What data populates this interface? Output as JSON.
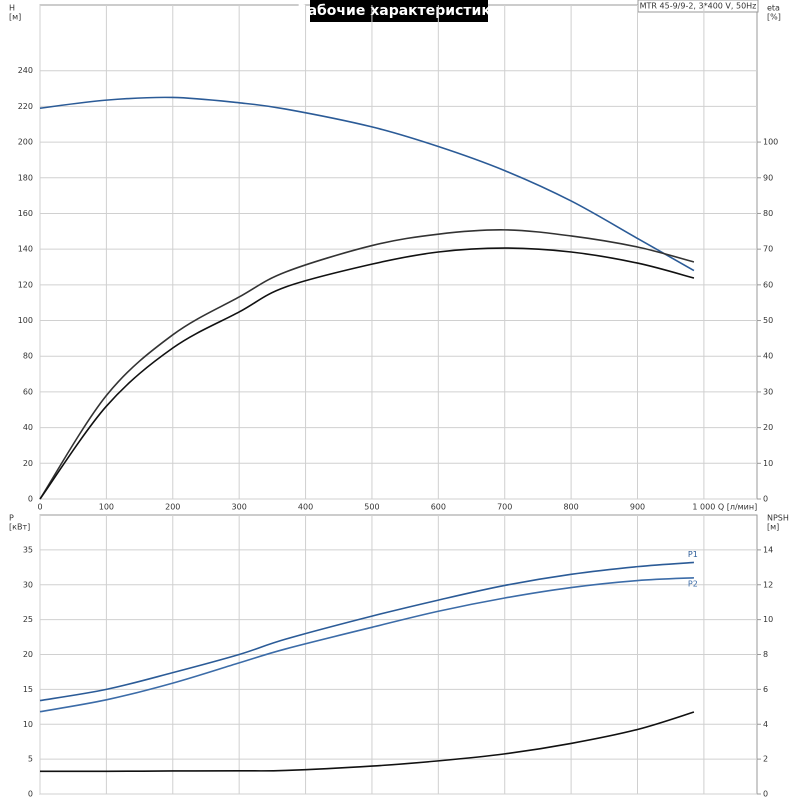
{
  "chart_data": [
    {
      "type": "line",
      "title": "Рабочие характеристики",
      "subtitle": "MTR 45-9/9-2, 3*400 V, 50Hz",
      "y_label": "H",
      "y_unit": "[м]",
      "y2_label": "eta",
      "y2_unit": "[%]",
      "x_label": "Q [л/мин]",
      "xlim": [
        0,
        1080
      ],
      "xticks": [
        0,
        100,
        200,
        300,
        400,
        500,
        600,
        700,
        800,
        900,
        {
          "value": 1000,
          "label": "1 000"
        }
      ],
      "ylim": [
        0,
        260
      ],
      "yticks": [
        0,
        20,
        40,
        60,
        80,
        100,
        120,
        140,
        160,
        180,
        200,
        220,
        240
      ],
      "y2lim": [
        0,
        130
      ],
      "y2ticks": [
        0,
        10,
        20,
        30,
        40,
        50,
        60,
        70,
        80,
        90,
        100
      ],
      "grid": true,
      "x": [
        0,
        100,
        200,
        300,
        370,
        500,
        600,
        700,
        800,
        900,
        985
      ],
      "series": [
        {
          "color": "#2b5b97",
          "values": [
            219,
            223.5,
            225,
            222,
            218.5,
            208.5,
            197.5,
            184,
            167,
            146,
            128
          ]
        },
        {
          "color": "#333333",
          "axis": "y2",
          "values": [
            0,
            29,
            46,
            56.6,
            63.6,
            71,
            74.2,
            75.4,
            73.7,
            70.6,
            66.4
          ]
        },
        {
          "color": "#111111",
          "axis": "y2",
          "values": [
            0,
            26,
            42.3,
            52.4,
            59.4,
            65.8,
            69.2,
            70.3,
            69.2,
            66.1,
            61.9
          ]
        }
      ]
    },
    {
      "type": "line",
      "y_label": "P",
      "y_unit": "[кВт]",
      "y2_label": "NPSH",
      "y2_unit": "[м]",
      "xlim": [
        0,
        1080
      ],
      "xticks": [
        0,
        100,
        200,
        300,
        400,
        500,
        600,
        700,
        800,
        900,
        1000
      ],
      "ylim": [
        0,
        40
      ],
      "yticks": [
        0,
        5,
        10,
        15,
        20,
        25,
        30,
        35
      ],
      "y2lim": [
        0,
        16
      ],
      "y2ticks": [
        0,
        2,
        4,
        6,
        8,
        10,
        12,
        14
      ],
      "grid": true,
      "x": [
        0,
        100,
        200,
        300,
        370,
        500,
        600,
        700,
        800,
        900,
        985
      ],
      "series": [
        {
          "name": "P1",
          "color": "#2b5b97",
          "values": [
            13.4,
            15,
            17.4,
            20,
            22.2,
            25.5,
            27.8,
            29.9,
            31.5,
            32.6,
            33.2
          ]
        },
        {
          "name": "P2",
          "color": "#3c6ca8",
          "values": [
            11.8,
            13.5,
            15.9,
            18.8,
            20.8,
            23.9,
            26.2,
            28.1,
            29.6,
            30.6,
            31.0
          ]
        },
        {
          "color": "#111111",
          "axis": "y2",
          "values": [
            1.3,
            1.3,
            1.32,
            1.33,
            1.35,
            1.6,
            1.9,
            2.3,
            2.9,
            3.7,
            4.7
          ]
        }
      ]
    }
  ]
}
